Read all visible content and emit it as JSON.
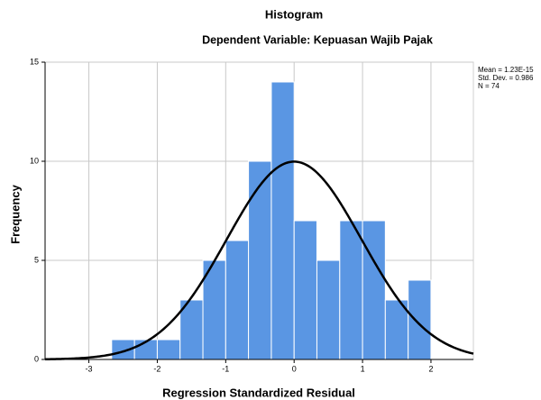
{
  "chart_data": {
    "type": "histogram",
    "title": "Histogram",
    "subtitle": "Dependent Variable: Kepuasan Wajib Pajak",
    "x_label": "Regression Standardized Residual",
    "y_label": "Frequency",
    "bins": [
      -2.667,
      -2.333,
      -2,
      -1.667,
      -1.333,
      -1,
      -0.667,
      -0.333,
      0,
      0.333,
      0.667,
      1,
      1.333,
      1.667,
      2
    ],
    "values": [
      1,
      1,
      1,
      3,
      5,
      6,
      10,
      14,
      7,
      5,
      7,
      7,
      3,
      4
    ],
    "color": "#5a96e3",
    "curve_color": "#000000",
    "xlim": [
      -3.64,
      2.62
    ],
    "xticks": [
      -3,
      -2,
      -1,
      0,
      1,
      2
    ],
    "ylim": [
      0,
      15
    ],
    "yticks": [
      0,
      5,
      10,
      15
    ],
    "grid": true,
    "stats": {
      "mean": {
        "value": 1.23e-15,
        "label": "Mean = 1.23E-15"
      },
      "std": {
        "value": 0.986,
        "label": "Std. Dev. = 0.986"
      },
      "n": {
        "value": 74,
        "label": "N = 74"
      }
    }
  }
}
